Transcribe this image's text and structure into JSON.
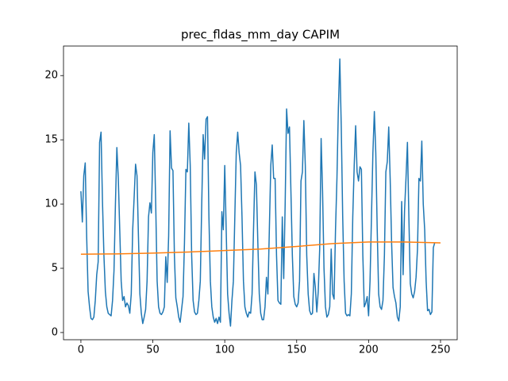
{
  "chart_data": {
    "type": "line",
    "title": "prec_fldas_mm_day CAPIM",
    "xlim": [
      -12.1,
      261.6
    ],
    "ylim": [
      -0.56,
      22.3
    ],
    "xticks": [
      0,
      50,
      100,
      150,
      200,
      250
    ],
    "yticks": [
      0,
      5,
      10,
      15,
      20
    ],
    "series": [
      {
        "color": "#1f77b4",
        "x": [
          0,
          1,
          2,
          3,
          4,
          5,
          6,
          7,
          8,
          9,
          10,
          11,
          12,
          13,
          14,
          15,
          16,
          17,
          18,
          19,
          20,
          21,
          22,
          23,
          24,
          25,
          26,
          27,
          28,
          29,
          30,
          31,
          32,
          33,
          34,
          35,
          36,
          37,
          38,
          39,
          40,
          41,
          42,
          43,
          44,
          45,
          46,
          47,
          48,
          49,
          50,
          51,
          52,
          53,
          54,
          55,
          56,
          57,
          58,
          59,
          60,
          61,
          62,
          63,
          64,
          65,
          66,
          67,
          68,
          69,
          70,
          71,
          72,
          73,
          74,
          75,
          76,
          77,
          78,
          79,
          80,
          81,
          82,
          83,
          84,
          85,
          86,
          87,
          88,
          89,
          90,
          91,
          92,
          93,
          94,
          95,
          96,
          97,
          98,
          99,
          100,
          101,
          102,
          103,
          104,
          105,
          106,
          107,
          108,
          109,
          110,
          111,
          112,
          113,
          114,
          115,
          116,
          117,
          118,
          119,
          120,
          121,
          122,
          123,
          124,
          125,
          126,
          127,
          128,
          129,
          130,
          131,
          132,
          133,
          134,
          135,
          136,
          137,
          138,
          139,
          140,
          141,
          142,
          143,
          144,
          145,
          146,
          147,
          148,
          149,
          150,
          151,
          152,
          153,
          154,
          155,
          156,
          157,
          158,
          159,
          160,
          161,
          162,
          163,
          164,
          165,
          166,
          167,
          168,
          169,
          170,
          171,
          172,
          173,
          174,
          175,
          176,
          177,
          178,
          179,
          180,
          181,
          182,
          183,
          184,
          185,
          186,
          187,
          188,
          189,
          190,
          191,
          192,
          193,
          194,
          195,
          196,
          197,
          198,
          199,
          200,
          201,
          202,
          203,
          204,
          205,
          206,
          207,
          208,
          209,
          210,
          211,
          212,
          213,
          214,
          215,
          216,
          217,
          218,
          219,
          220,
          221,
          222,
          223,
          224,
          225,
          226,
          227,
          228,
          229,
          230,
          231,
          232,
          233,
          234,
          235,
          236,
          237,
          238,
          239,
          240,
          241,
          242,
          243,
          244,
          245,
          246
        ],
        "values": [
          11.0,
          8.6,
          12.2,
          13.2,
          7.5,
          3.2,
          2.0,
          1.1,
          1.0,
          1.2,
          2.5,
          4.5,
          5.5,
          14.8,
          15.6,
          10.2,
          6.0,
          3.2,
          2.0,
          1.5,
          1.4,
          1.3,
          2.5,
          4.8,
          10.0,
          14.4,
          12.0,
          8.0,
          4.0,
          2.5,
          2.8,
          2.0,
          2.3,
          2.1,
          1.5,
          3.0,
          8.0,
          10.5,
          13.1,
          12.2,
          7.5,
          3.0,
          1.5,
          0.7,
          1.2,
          1.8,
          4.0,
          9.0,
          10.1,
          9.3,
          14.0,
          15.4,
          10.0,
          4.0,
          2.0,
          1.5,
          1.4,
          1.6,
          2.0,
          5.9,
          3.9,
          7.5,
          15.7,
          12.8,
          12.6,
          6.0,
          2.7,
          2.0,
          1.2,
          0.8,
          1.8,
          2.8,
          7.0,
          12.7,
          12.5,
          16.3,
          13.0,
          6.0,
          2.5,
          1.6,
          1.4,
          1.5,
          2.5,
          4.0,
          10.0,
          15.4,
          13.5,
          16.6,
          16.8,
          9.0,
          4.0,
          2.0,
          1.2,
          0.8,
          1.1,
          0.7,
          1.2,
          0.8,
          9.4,
          8.0,
          13.0,
          8.0,
          3.0,
          1.5,
          0.5,
          2.5,
          4.0,
          9.0,
          14.0,
          15.6,
          14.0,
          13.0,
          9.0,
          4.0,
          2.0,
          1.5,
          1.2,
          1.6,
          1.5,
          3.0,
          8.0,
          12.5,
          11.5,
          7.0,
          3.0,
          1.5,
          1.0,
          1.0,
          2.0,
          4.3,
          3.0,
          8.0,
          13.0,
          14.6,
          12.0,
          12.0,
          6.0,
          2.5,
          2.3,
          2.2,
          9.0,
          4.2,
          10.0,
          17.4,
          15.5,
          16.0,
          11.0,
          6.0,
          2.8,
          2.2,
          2.0,
          2.3,
          4.0,
          11.8,
          12.5,
          16.5,
          13.0,
          6.0,
          3.0,
          1.7,
          1.4,
          1.5,
          4.6,
          3.5,
          1.6,
          3.2,
          6.5,
          15.1,
          11.0,
          5.0,
          2.0,
          1.2,
          1.4,
          2.0,
          6.5,
          3.0,
          2.6,
          8.0,
          12.0,
          17.5,
          21.3,
          16.0,
          9.0,
          4.0,
          1.5,
          1.3,
          1.4,
          1.3,
          3.0,
          9.0,
          13.0,
          16.1,
          12.5,
          11.8,
          12.9,
          12.7,
          6.0,
          2.0,
          2.3,
          2.8,
          1.3,
          4.0,
          9.0,
          14.0,
          17.2,
          14.0,
          8.0,
          3.0,
          2.0,
          1.8,
          2.5,
          6.0,
          12.5,
          13.3,
          16.0,
          12.0,
          7.0,
          3.5,
          2.8,
          2.3,
          1.2,
          0.9,
          2.0,
          10.2,
          4.5,
          9.5,
          12.0,
          14.8,
          9.0,
          3.8,
          3.0,
          2.7,
          3.2,
          4.3,
          6.5,
          12.0,
          11.8,
          14.9,
          10.0,
          8.0,
          4.0,
          1.7,
          1.8,
          1.4,
          1.6,
          6.6,
          7.0
        ]
      },
      {
        "color": "#ff7f0e",
        "x": [
          0,
          25,
          50,
          75,
          100,
          125,
          150,
          175,
          200,
          225,
          250
        ],
        "values": [
          6.1,
          6.12,
          6.18,
          6.27,
          6.38,
          6.5,
          6.7,
          6.92,
          7.05,
          7.05,
          6.98
        ]
      }
    ]
  }
}
